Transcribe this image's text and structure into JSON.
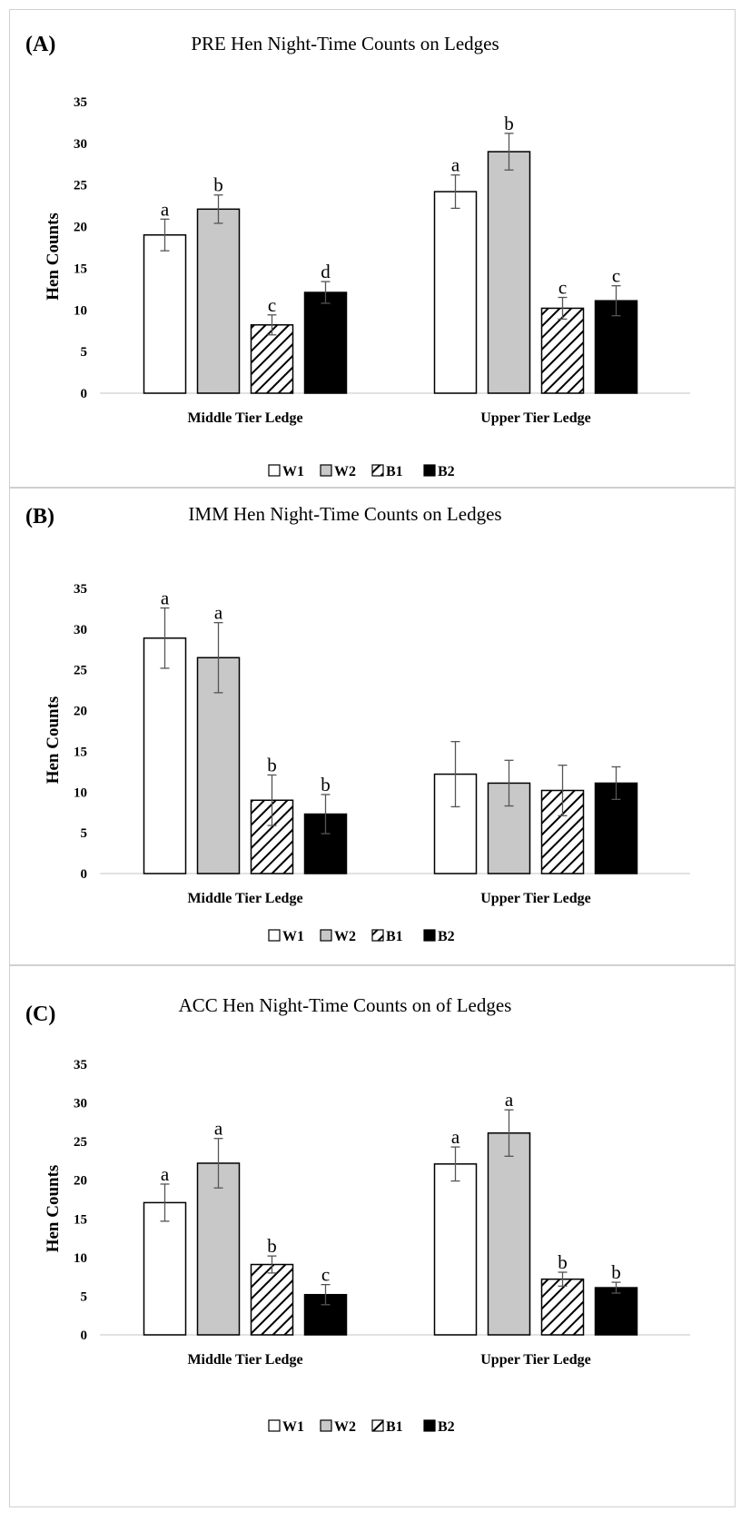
{
  "chart_data": [
    {
      "type": "bar",
      "panel_label": "(A)",
      "title": "PRE Hen Night-Time Counts on Ledges",
      "xlabel": "",
      "ylabel": "Hen Counts",
      "ylim": [
        0,
        35
      ],
      "yticks": [
        0,
        5,
        10,
        15,
        20,
        25,
        30,
        35
      ],
      "grid": false,
      "legend_position": "bottom",
      "categories": [
        "Middle Tier Ledge",
        "Upper Tier Ledge"
      ],
      "series": [
        {
          "name": "W1",
          "fill": "#ffffff",
          "pattern": "none",
          "values": [
            19,
            24.2
          ],
          "errors": [
            1.9,
            2.0
          ],
          "letters": [
            "a",
            "a"
          ]
        },
        {
          "name": "W2",
          "fill": "#c8c8c8",
          "pattern": "none",
          "values": [
            22.1,
            29
          ],
          "errors": [
            1.7,
            2.2
          ],
          "letters": [
            "b",
            "b"
          ]
        },
        {
          "name": "B1",
          "fill": "#ffffff",
          "pattern": "diagonal-hatch",
          "values": [
            8.2,
            10.2
          ],
          "errors": [
            1.2,
            1.3
          ],
          "letters": [
            "c",
            "c"
          ]
        },
        {
          "name": "B2",
          "fill": "#000000",
          "pattern": "none",
          "values": [
            12.1,
            11.1
          ],
          "errors": [
            1.3,
            1.8
          ],
          "letters": [
            "d",
            "c"
          ]
        }
      ]
    },
    {
      "type": "bar",
      "panel_label": "(B)",
      "title": "IMM Hen Night-Time Counts on Ledges",
      "xlabel": "",
      "ylabel": "Hen Counts",
      "ylim": [
        0,
        35
      ],
      "yticks": [
        0,
        5,
        10,
        15,
        20,
        25,
        30,
        35
      ],
      "grid": false,
      "legend_position": "bottom",
      "categories": [
        "Middle Tier Ledge",
        "Upper Tier Ledge"
      ],
      "series": [
        {
          "name": "W1",
          "fill": "#ffffff",
          "pattern": "none",
          "values": [
            28.9,
            12.2
          ],
          "errors": [
            3.7,
            4.0
          ],
          "letters": [
            "a",
            ""
          ]
        },
        {
          "name": "W2",
          "fill": "#c8c8c8",
          "pattern": "none",
          "values": [
            26.5,
            11.1
          ],
          "errors": [
            4.3,
            2.8
          ],
          "letters": [
            "a",
            ""
          ]
        },
        {
          "name": "B1",
          "fill": "#ffffff",
          "pattern": "diagonal-hatch",
          "values": [
            9.0,
            10.2
          ],
          "errors": [
            3.1,
            3.1
          ],
          "letters": [
            "b",
            ""
          ]
        },
        {
          "name": "B2",
          "fill": "#000000",
          "pattern": "none",
          "values": [
            7.3,
            11.1
          ],
          "errors": [
            2.4,
            2.0
          ],
          "letters": [
            "b",
            ""
          ]
        }
      ]
    },
    {
      "type": "bar",
      "panel_label": "(C)",
      "title": "ACC Hen Night-Time Counts on of Ledges",
      "xlabel": "",
      "ylabel": "Hen Counts",
      "ylim": [
        0,
        35
      ],
      "yticks": [
        0,
        5,
        10,
        15,
        20,
        25,
        30,
        35
      ],
      "grid": false,
      "legend_position": "bottom",
      "categories": [
        "Middle Tier Ledge",
        "Upper Tier Ledge"
      ],
      "series": [
        {
          "name": "W1",
          "fill": "#ffffff",
          "pattern": "none",
          "values": [
            17.1,
            22.1
          ],
          "errors": [
            2.4,
            2.2
          ],
          "letters": [
            "a",
            "a"
          ]
        },
        {
          "name": "W2",
          "fill": "#c8c8c8",
          "pattern": "none",
          "values": [
            22.2,
            26.1
          ],
          "errors": [
            3.2,
            3.0
          ],
          "letters": [
            "a",
            "a"
          ]
        },
        {
          "name": "B1",
          "fill": "#ffffff",
          "pattern": "diagonal-hatch",
          "values": [
            9.1,
            7.2
          ],
          "errors": [
            1.1,
            0.9
          ],
          "letters": [
            "b",
            "b"
          ]
        },
        {
          "name": "B2",
          "fill": "#000000",
          "pattern": "none",
          "values": [
            5.2,
            6.1
          ],
          "errors": [
            1.3,
            0.7
          ],
          "letters": [
            "c",
            "b"
          ]
        }
      ]
    }
  ]
}
